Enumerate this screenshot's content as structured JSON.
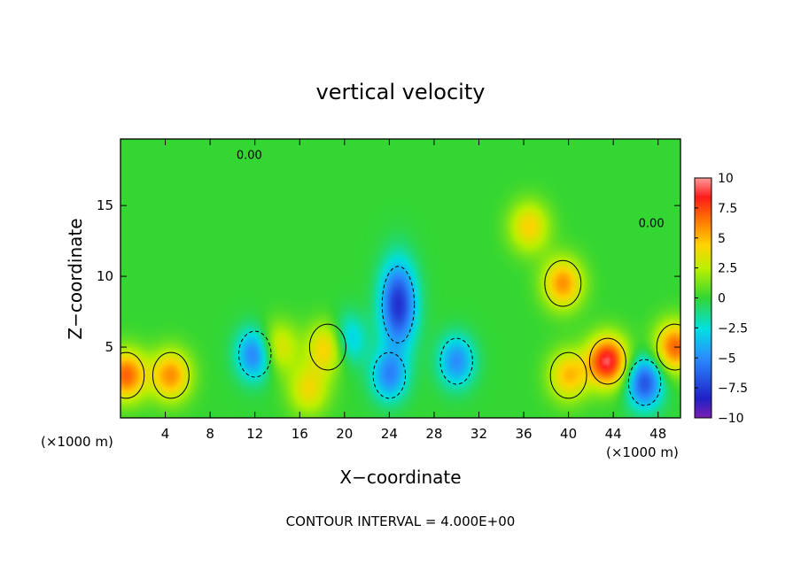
{
  "chart_data": {
    "type": "heatmap",
    "title": "vertical velocity",
    "xlabel": "X−coordinate",
    "ylabel": "Z−coordinate",
    "x_unit_left": "(×1000 m)",
    "x_unit_right": "(×1000 m)",
    "footer": "CONTOUR INTERVAL = 4.000E+00",
    "xlim": [
      0,
      50
    ],
    "ylim": [
      0,
      19.7
    ],
    "x_ticks": [
      4,
      8,
      12,
      16,
      20,
      24,
      28,
      32,
      36,
      40,
      44,
      48
    ],
    "x_tick_labels": [
      "4",
      "8",
      "12",
      "16",
      "20",
      "24",
      "28",
      "32",
      "36",
      "40",
      "44",
      "48"
    ],
    "y_ticks": [
      5,
      10,
      15
    ],
    "y_tick_labels": [
      "5",
      "10",
      "15"
    ],
    "colorbar": {
      "range": [
        -10,
        10
      ],
      "ticks": [
        10,
        7.5,
        5,
        2.5,
        0,
        -2.5,
        -5,
        -7.5,
        -10
      ],
      "tick_labels": [
        "10",
        "7.5",
        "5",
        "2.5",
        "0",
        "−2.5",
        "−5",
        "−7.5",
        "−10"
      ]
    },
    "contour_labels": [
      {
        "text": "0.00",
        "x": 11.5,
        "z": 18.6
      },
      {
        "text": "0.00",
        "x": 47.4,
        "z": 13.8
      }
    ],
    "features": [
      {
        "kind": "updraft",
        "x": 4.5,
        "z": 3.0,
        "value": 6
      },
      {
        "kind": "updraft",
        "x": 0.5,
        "z": 3.0,
        "value": 7
      },
      {
        "kind": "updraft",
        "x": 39.5,
        "z": 9.5,
        "value": 6
      },
      {
        "kind": "updraft",
        "x": 36.5,
        "z": 13.5,
        "value": 4.5
      },
      {
        "kind": "updraft",
        "x": 43.5,
        "z": 4.0,
        "value": 9
      },
      {
        "kind": "updraft",
        "x": 40.0,
        "z": 3.0,
        "value": 5
      },
      {
        "kind": "updraft",
        "x": 49.5,
        "z": 5.0,
        "value": 7
      },
      {
        "kind": "updraft",
        "x": 18.5,
        "z": 5.0,
        "value": 5
      },
      {
        "kind": "updraft",
        "x": 14.0,
        "z": 5.0,
        "value": 4
      },
      {
        "kind": "updraft",
        "x": 16.8,
        "z": 2.0,
        "value": 4
      },
      {
        "kind": "downdraft",
        "x": 24.8,
        "z": 8.0,
        "value": -8
      },
      {
        "kind": "downdraft",
        "x": 24.0,
        "z": 3.0,
        "value": -5
      },
      {
        "kind": "downdraft",
        "x": 12.0,
        "z": 4.5,
        "value": -6
      },
      {
        "kind": "downdraft",
        "x": 30.0,
        "z": 4.0,
        "value": -5
      },
      {
        "kind": "downdraft",
        "x": 46.8,
        "z": 2.5,
        "value": -7
      },
      {
        "kind": "downdraft",
        "x": 20.3,
        "z": 5.5,
        "value": -4
      }
    ]
  }
}
